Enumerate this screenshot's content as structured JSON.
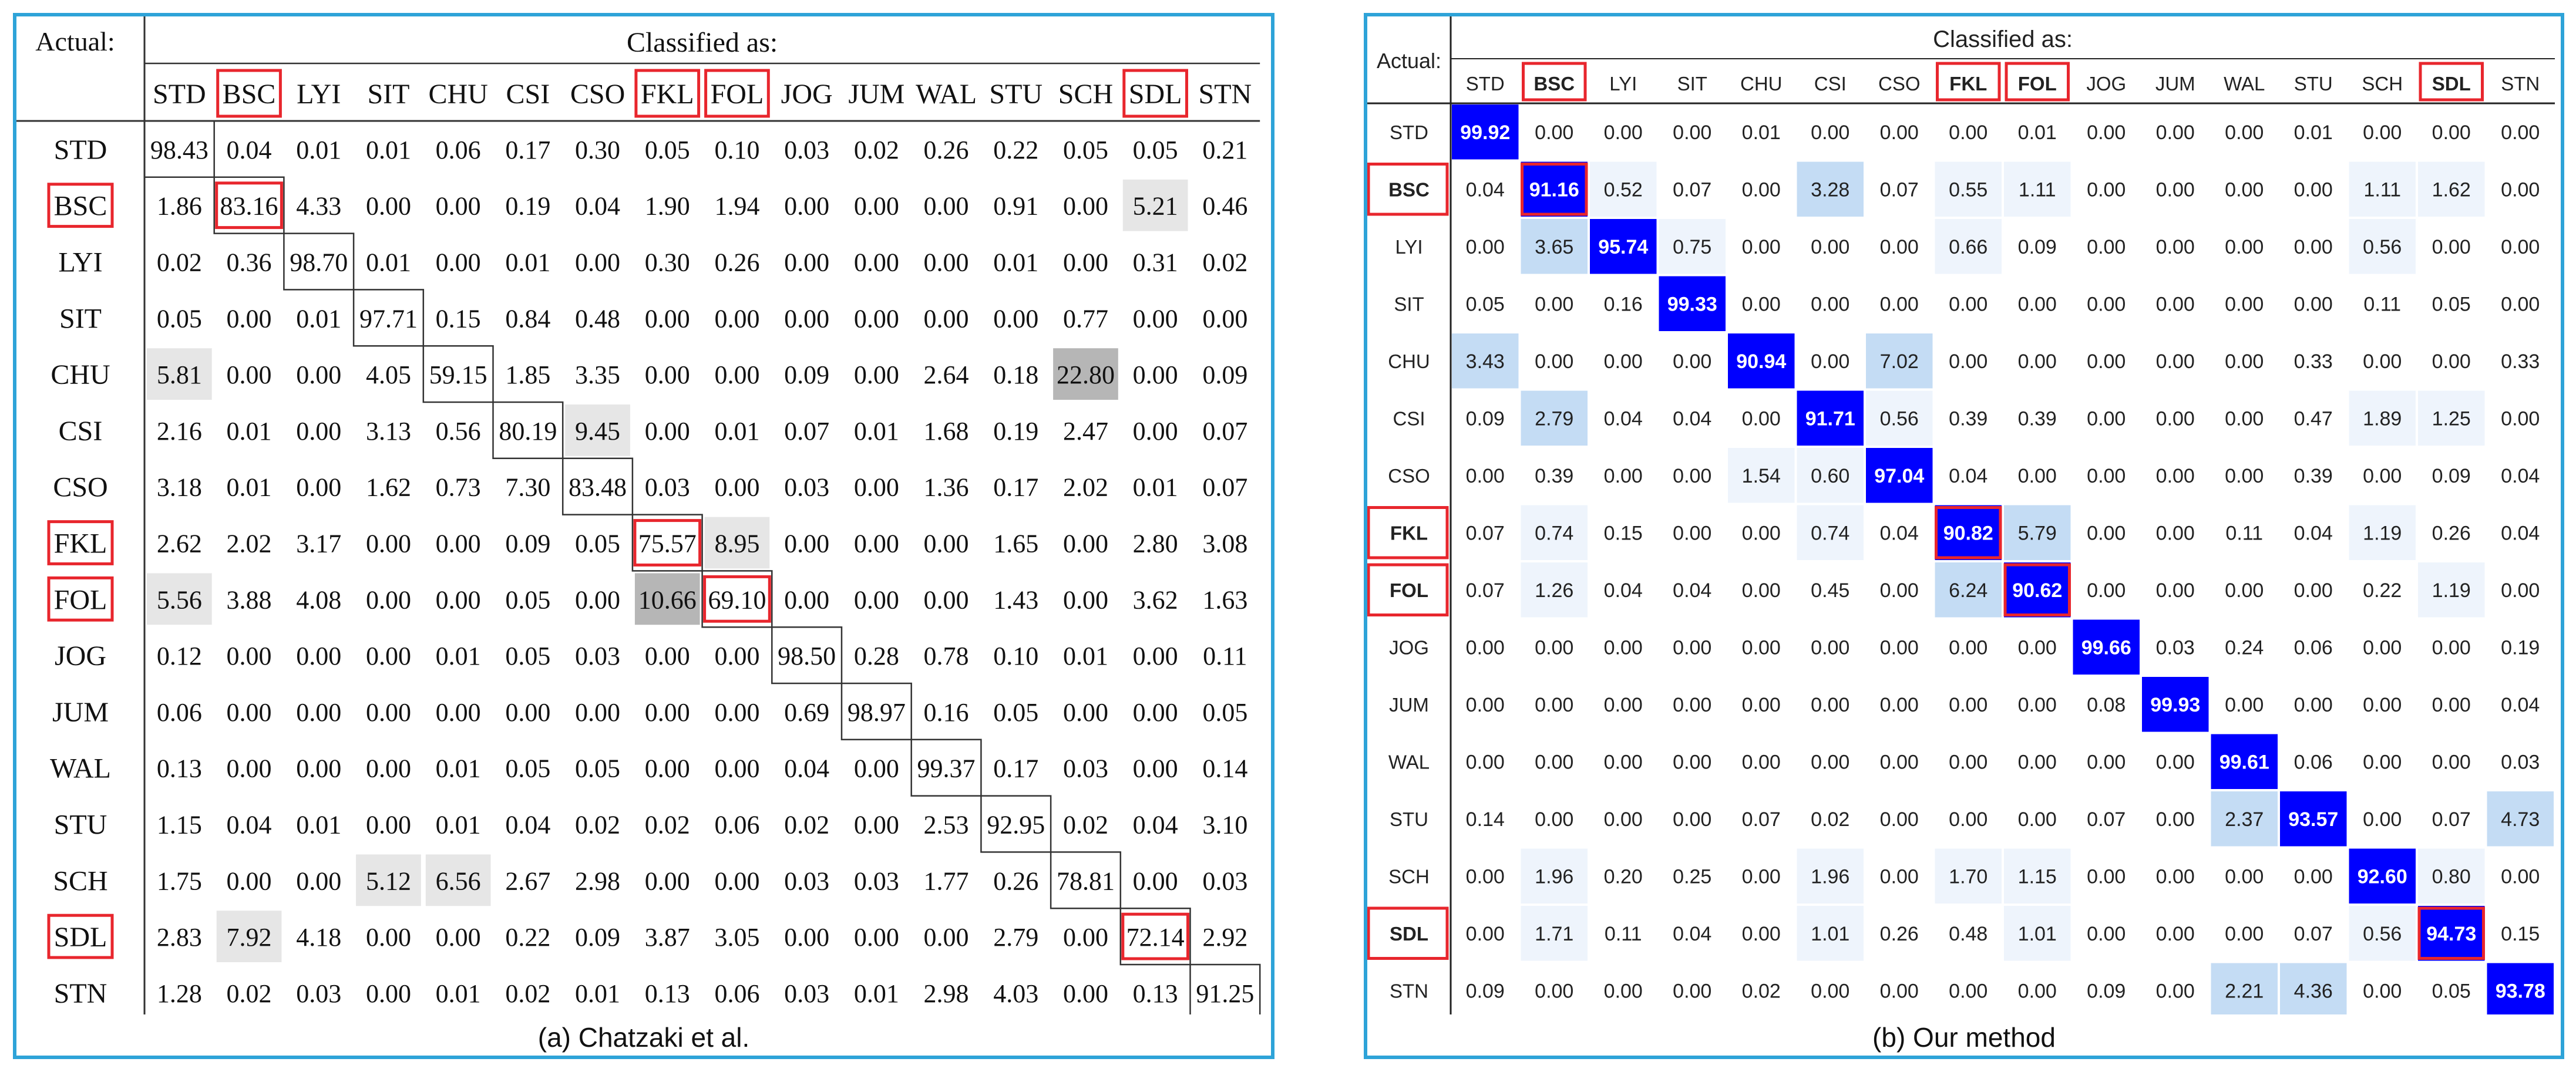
{
  "chart_data": [
    {
      "type": "heatmap",
      "caption": "(a) Chatzaki et al.",
      "corner_label": "Actual:",
      "header_label": "Classified as:",
      "categories": [
        "STD",
        "BSC",
        "LYI",
        "SIT",
        "CHU",
        "CSI",
        "CSO",
        "FKL",
        "FOL",
        "JOG",
        "JUM",
        "WAL",
        "STU",
        "SCH",
        "SDL",
        "STN"
      ],
      "highlighted": [
        "BSC",
        "FKL",
        "FOL",
        "SDL"
      ],
      "matrix": [
        [
          98.43,
          0.04,
          0.01,
          0.01,
          0.06,
          0.17,
          0.3,
          0.05,
          0.1,
          0.03,
          0.02,
          0.26,
          0.22,
          0.05,
          0.05,
          0.21
        ],
        [
          1.86,
          83.16,
          4.33,
          0.0,
          0.0,
          0.19,
          0.04,
          1.9,
          1.94,
          0.0,
          0.0,
          0.0,
          0.91,
          0.0,
          5.21,
          0.46
        ],
        [
          0.02,
          0.36,
          98.7,
          0.01,
          0.0,
          0.01,
          0.0,
          0.3,
          0.26,
          0.0,
          0.0,
          0.0,
          0.01,
          0.0,
          0.31,
          0.02
        ],
        [
          0.05,
          0.0,
          0.01,
          97.71,
          0.15,
          0.84,
          0.48,
          0.0,
          0.0,
          0.0,
          0.0,
          0.0,
          0.0,
          0.77,
          0.0,
          0.0
        ],
        [
          5.81,
          0.0,
          0.0,
          4.05,
          59.15,
          1.85,
          3.35,
          0.0,
          0.0,
          0.09,
          0.0,
          2.64,
          0.18,
          22.8,
          0.0,
          0.09
        ],
        [
          2.16,
          0.01,
          0.0,
          3.13,
          0.56,
          80.19,
          9.45,
          0.0,
          0.01,
          0.07,
          0.01,
          1.68,
          0.19,
          2.47,
          0.0,
          0.07
        ],
        [
          3.18,
          0.01,
          0.0,
          1.62,
          0.73,
          7.3,
          83.48,
          0.03,
          0.0,
          0.03,
          0.0,
          1.36,
          0.17,
          2.02,
          0.01,
          0.07
        ],
        [
          2.62,
          2.02,
          3.17,
          0.0,
          0.0,
          0.09,
          0.05,
          75.57,
          8.95,
          0.0,
          0.0,
          0.0,
          1.65,
          0.0,
          2.8,
          3.08
        ],
        [
          5.56,
          3.88,
          4.08,
          0.0,
          0.0,
          0.05,
          0.0,
          10.66,
          69.1,
          0.0,
          0.0,
          0.0,
          1.43,
          0.0,
          3.62,
          1.63
        ],
        [
          0.12,
          0.0,
          0.0,
          0.0,
          0.01,
          0.05,
          0.03,
          0.0,
          0.0,
          98.5,
          0.28,
          0.78,
          0.1,
          0.01,
          0.0,
          0.11
        ],
        [
          0.06,
          0.0,
          0.0,
          0.0,
          0.0,
          0.0,
          0.0,
          0.0,
          0.0,
          0.69,
          98.97,
          0.16,
          0.05,
          0.0,
          0.0,
          0.05
        ],
        [
          0.13,
          0.0,
          0.0,
          0.0,
          0.01,
          0.05,
          0.05,
          0.0,
          0.0,
          0.04,
          0.0,
          99.37,
          0.17,
          0.03,
          0.0,
          0.14
        ],
        [
          1.15,
          0.04,
          0.01,
          0.0,
          0.01,
          0.04,
          0.02,
          0.02,
          0.06,
          0.02,
          0.0,
          2.53,
          92.95,
          0.02,
          0.04,
          3.1
        ],
        [
          1.75,
          0.0,
          0.0,
          5.12,
          6.56,
          2.67,
          2.98,
          0.0,
          0.0,
          0.03,
          0.03,
          1.77,
          0.26,
          78.81,
          0.0,
          0.03
        ],
        [
          2.83,
          7.92,
          4.18,
          0.0,
          0.0,
          0.22,
          0.09,
          3.87,
          3.05,
          0.0,
          0.0,
          0.0,
          2.79,
          0.0,
          72.14,
          2.92
        ],
        [
          1.28,
          0.02,
          0.03,
          0.0,
          0.01,
          0.02,
          0.01,
          0.13,
          0.06,
          0.03,
          0.01,
          2.98,
          4.03,
          0.0,
          0.13,
          91.25
        ]
      ],
      "shaded_cells": [
        {
          "row": 1,
          "col": 14,
          "level": "light"
        },
        {
          "row": 4,
          "col": 0,
          "level": "light"
        },
        {
          "row": 4,
          "col": 13,
          "level": "dark"
        },
        {
          "row": 5,
          "col": 6,
          "level": "light"
        },
        {
          "row": 7,
          "col": 8,
          "level": "light"
        },
        {
          "row": 8,
          "col": 0,
          "level": "light"
        },
        {
          "row": 8,
          "col": 7,
          "level": "dark"
        },
        {
          "row": 13,
          "col": 3,
          "level": "light"
        },
        {
          "row": 13,
          "col": 4,
          "level": "light"
        },
        {
          "row": 14,
          "col": 1,
          "level": "light"
        }
      ],
      "colors": {
        "border": "#2ea3d8",
        "highlight": "#e8262d",
        "light": "#e6e6e6",
        "dark": "#b6b6b6",
        "text": "#111111"
      }
    },
    {
      "type": "heatmap",
      "caption": "(b) Our method",
      "corner_label": "Actual:",
      "header_label": "Classified as:",
      "categories": [
        "STD",
        "BSC",
        "LYI",
        "SIT",
        "CHU",
        "CSI",
        "CSO",
        "FKL",
        "FOL",
        "JOG",
        "JUM",
        "WAL",
        "STU",
        "SCH",
        "SDL",
        "STN"
      ],
      "highlighted": [
        "BSC",
        "FKL",
        "FOL",
        "SDL"
      ],
      "matrix": [
        [
          99.92,
          0.0,
          0.0,
          0.0,
          0.01,
          0.0,
          0.0,
          0.0,
          0.01,
          0.0,
          0.0,
          0.0,
          0.01,
          0.0,
          0.0,
          0.0
        ],
        [
          0.04,
          91.16,
          0.52,
          0.07,
          0.0,
          3.28,
          0.07,
          0.55,
          1.11,
          0.0,
          0.0,
          0.0,
          0.0,
          1.11,
          1.62,
          0.0
        ],
        [
          0.0,
          3.65,
          95.74,
          0.75,
          0.0,
          0.0,
          0.0,
          0.66,
          0.09,
          0.0,
          0.0,
          0.0,
          0.0,
          0.56,
          0.0,
          0.0
        ],
        [
          0.05,
          0.0,
          0.16,
          99.33,
          0.0,
          0.0,
          0.0,
          0.0,
          0.0,
          0.0,
          0.0,
          0.0,
          0.0,
          0.11,
          0.05,
          0.0
        ],
        [
          3.43,
          0.0,
          0.0,
          0.0,
          90.94,
          0.0,
          7.02,
          0.0,
          0.0,
          0.0,
          0.0,
          0.0,
          0.33,
          0.0,
          0.0,
          0.33
        ],
        [
          0.09,
          2.79,
          0.04,
          0.04,
          0.0,
          91.71,
          0.56,
          0.39,
          0.39,
          0.0,
          0.0,
          0.0,
          0.47,
          1.89,
          1.25,
          0.0
        ],
        [
          0.0,
          0.39,
          0.0,
          0.0,
          1.54,
          0.6,
          97.04,
          0.04,
          0.0,
          0.0,
          0.0,
          0.0,
          0.39,
          0.0,
          0.09,
          0.04
        ],
        [
          0.07,
          0.74,
          0.15,
          0.0,
          0.0,
          0.74,
          0.04,
          90.82,
          5.79,
          0.0,
          0.0,
          0.11,
          0.04,
          1.19,
          0.26,
          0.04
        ],
        [
          0.07,
          1.26,
          0.04,
          0.04,
          0.0,
          0.45,
          0.0,
          6.24,
          90.62,
          0.0,
          0.0,
          0.0,
          0.0,
          0.22,
          1.19,
          0.0
        ],
        [
          0.0,
          0.0,
          0.0,
          0.0,
          0.0,
          0.0,
          0.0,
          0.0,
          0.0,
          99.66,
          0.03,
          0.24,
          0.06,
          0.0,
          0.0,
          0.19
        ],
        [
          0.0,
          0.0,
          0.0,
          0.0,
          0.0,
          0.0,
          0.0,
          0.0,
          0.0,
          0.08,
          99.93,
          0.0,
          0.0,
          0.0,
          0.0,
          0.04
        ],
        [
          0.0,
          0.0,
          0.0,
          0.0,
          0.0,
          0.0,
          0.0,
          0.0,
          0.0,
          0.0,
          0.0,
          99.61,
          0.06,
          0.0,
          0.0,
          0.03
        ],
        [
          0.14,
          0.0,
          0.0,
          0.0,
          0.07,
          0.02,
          0.0,
          0.0,
          0.0,
          0.07,
          0.0,
          2.37,
          93.57,
          0.0,
          0.07,
          4.73
        ],
        [
          0.0,
          1.96,
          0.2,
          0.25,
          0.0,
          1.96,
          0.0,
          1.7,
          1.15,
          0.0,
          0.0,
          0.0,
          0.0,
          92.6,
          0.8,
          0.0
        ],
        [
          0.0,
          1.71,
          0.11,
          0.04,
          0.0,
          1.01,
          0.26,
          0.48,
          1.01,
          0.0,
          0.0,
          0.0,
          0.07,
          0.56,
          94.73,
          0.15
        ],
        [
          0.09,
          0.0,
          0.0,
          0.0,
          0.02,
          0.0,
          0.0,
          0.0,
          0.0,
          0.09,
          0.0,
          2.21,
          4.36,
          0.0,
          0.05,
          93.78
        ]
      ],
      "colors": {
        "border": "#2ea3d8",
        "highlight": "#e8262d",
        "diag": "#0000ff",
        "diag_text": "#ffffff",
        "tint_low": "#eef4fc",
        "tint_high": "#c4dcf4",
        "text": "#222222"
      }
    }
  ]
}
